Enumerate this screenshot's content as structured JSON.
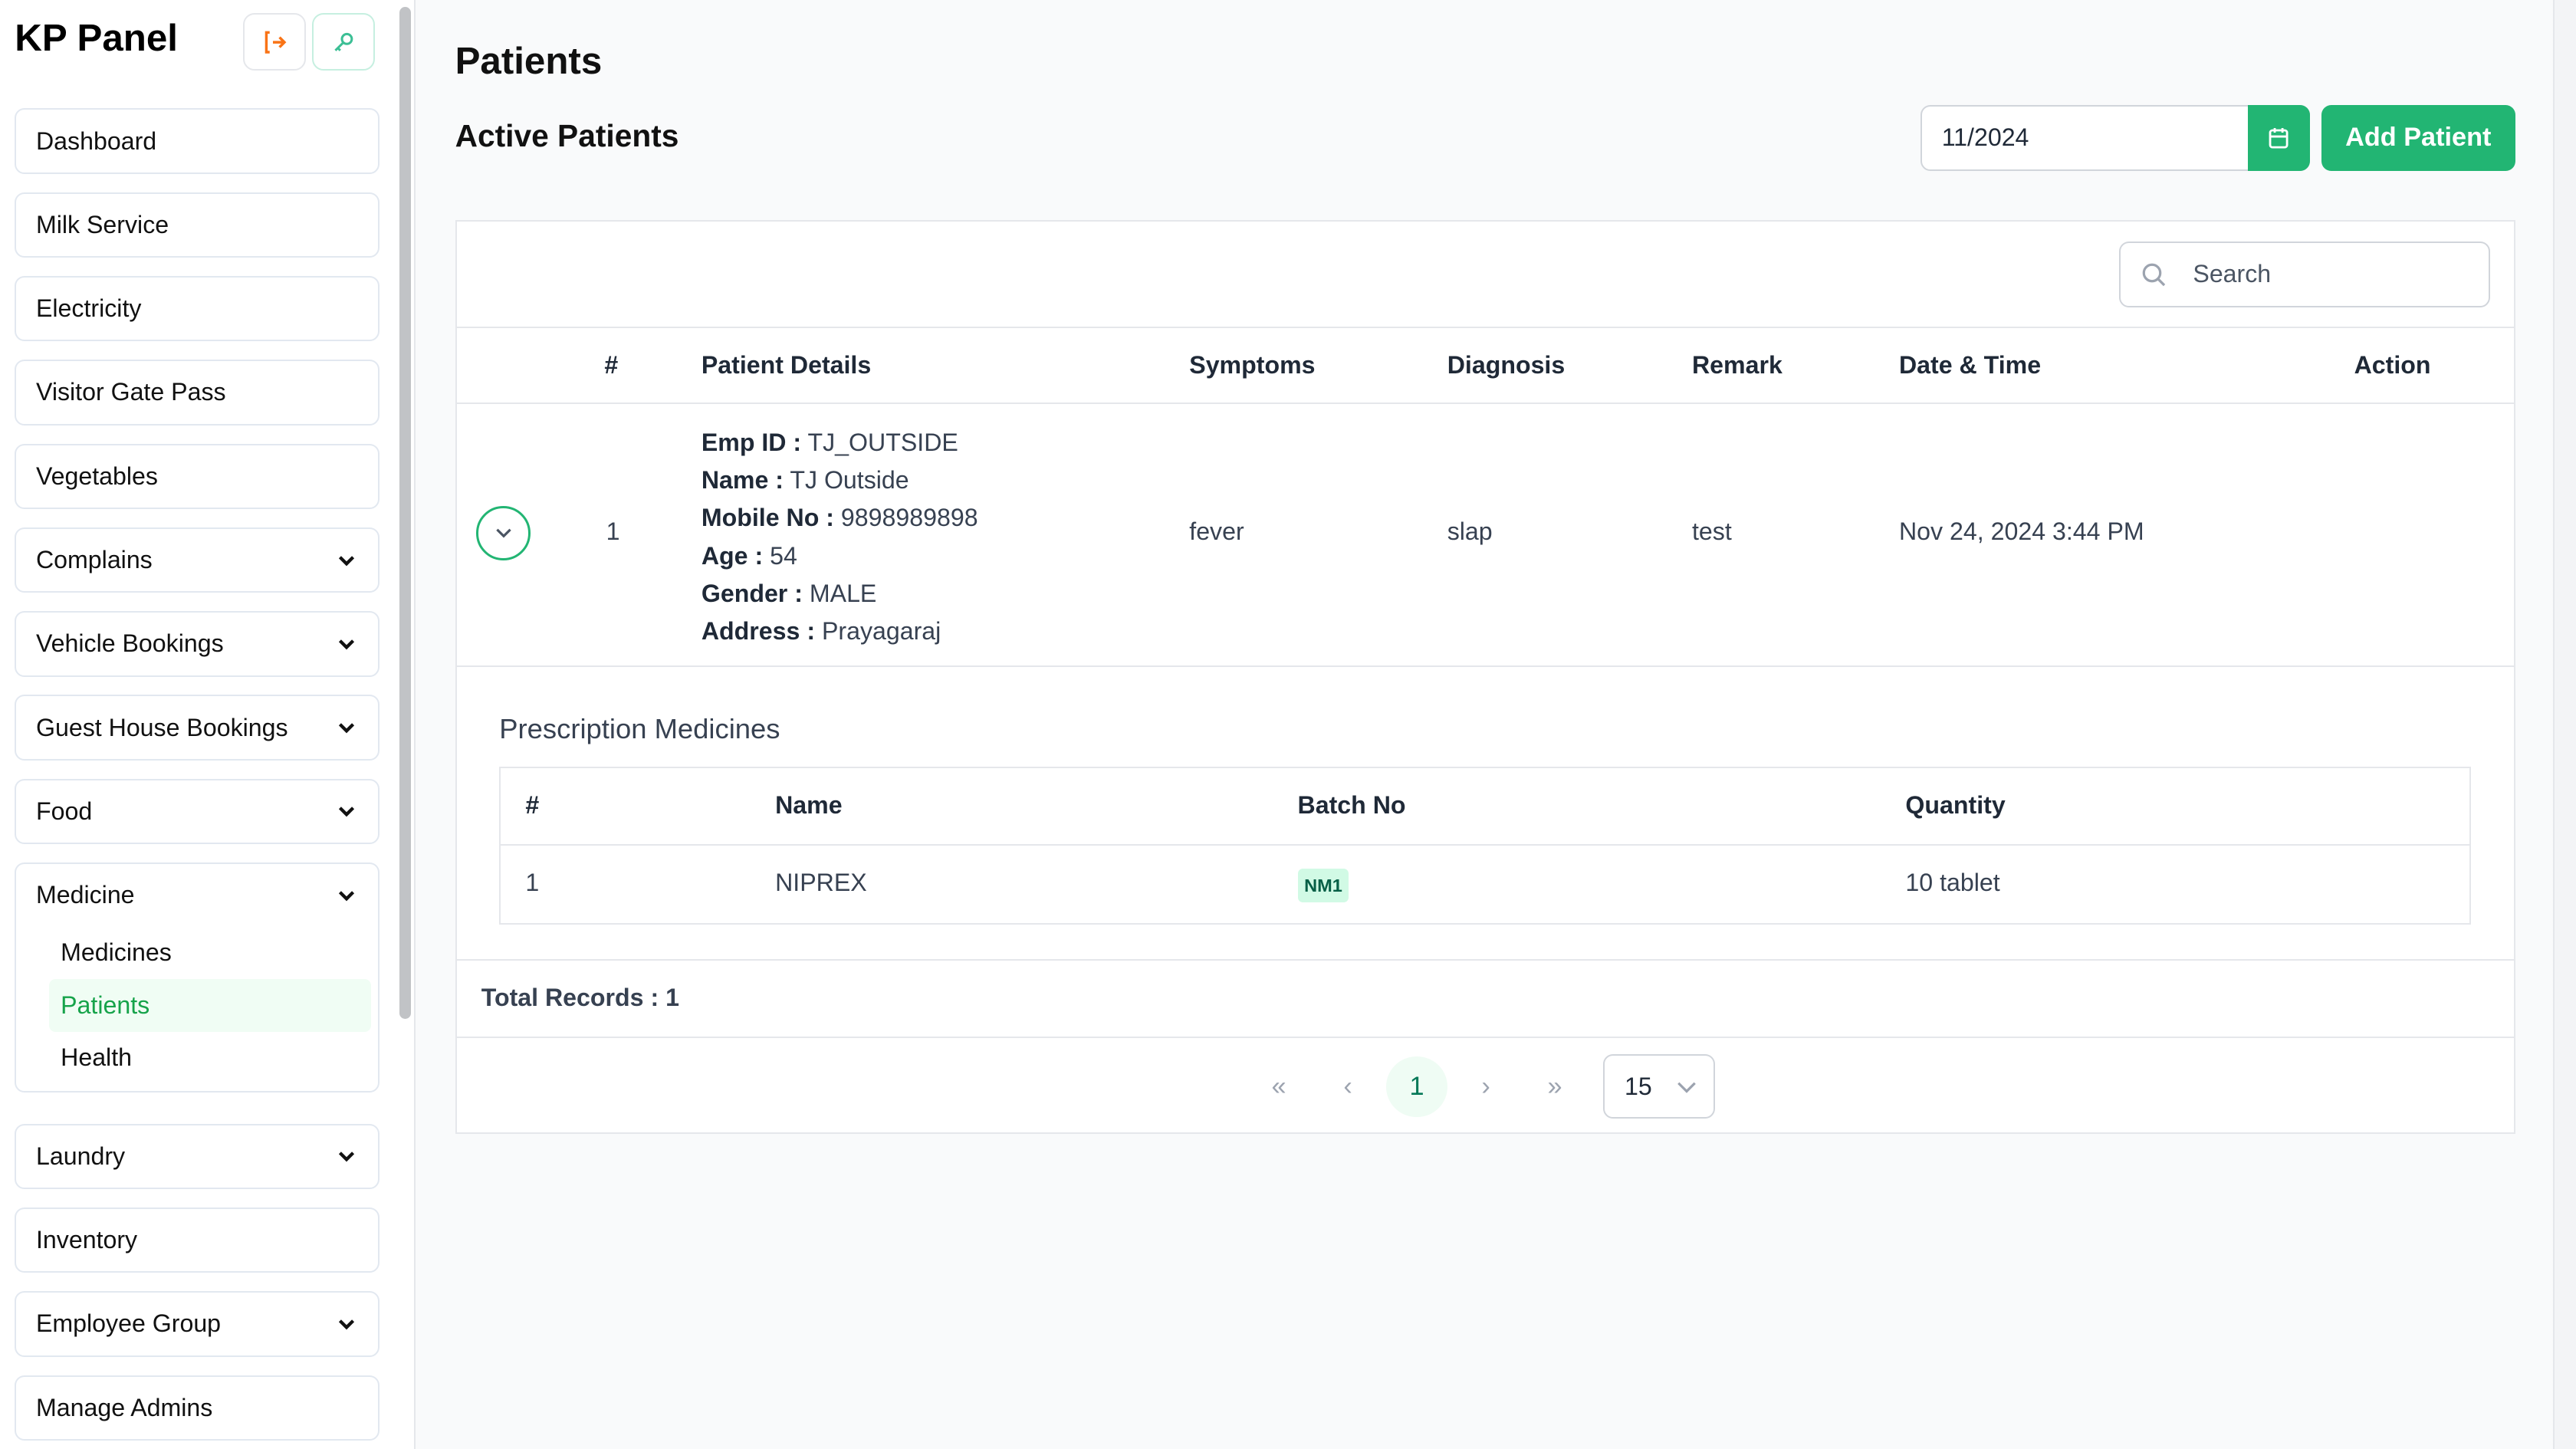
{
  "app": {
    "title": "KP Panel",
    "logout_icon": "logout-icon",
    "key_icon": "key-icon"
  },
  "sidebar": {
    "items": [
      {
        "label": "Dashboard",
        "chevron": false
      },
      {
        "label": "Milk Service",
        "chevron": false
      },
      {
        "label": "Electricity",
        "chevron": false
      },
      {
        "label": "Visitor Gate Pass",
        "chevron": false
      },
      {
        "label": "Vegetables",
        "chevron": false
      },
      {
        "label": "Complains",
        "chevron": true
      },
      {
        "label": "Vehicle Bookings",
        "chevron": true
      },
      {
        "label": "Guest House Bookings",
        "chevron": true
      },
      {
        "label": "Food",
        "chevron": true
      },
      {
        "label": "Medicine",
        "chevron": true,
        "expanded": true,
        "children": [
          {
            "label": "Medicines"
          },
          {
            "label": "Patients",
            "active": true
          },
          {
            "label": "Health"
          }
        ]
      },
      {
        "label": "Laundry",
        "chevron": true
      },
      {
        "label": "Inventory",
        "chevron": false
      },
      {
        "label": "Employee Group",
        "chevron": true
      },
      {
        "label": "Manage Admins",
        "chevron": false
      }
    ]
  },
  "page": {
    "title": "Patients",
    "subtitle": "Active Patients",
    "month_value": "11/2024",
    "add_label": "Add Patient",
    "accent": "#22b573"
  },
  "table": {
    "search_placeholder": "Search",
    "headers": [
      "#",
      "Patient Details",
      "Symptoms",
      "Diagnosis",
      "Remark",
      "Date & Time",
      "Action"
    ],
    "rows": [
      {
        "index": "1",
        "details": [
          {
            "label": "Emp ID :",
            "value": "TJ_OUTSIDE"
          },
          {
            "label": "Name :",
            "value": "TJ Outside"
          },
          {
            "label": "Mobile No :",
            "value": "9898989898"
          },
          {
            "label": "Age :",
            "value": "54"
          },
          {
            "label": "Gender :",
            "value": "MALE"
          },
          {
            "label": "Address :",
            "value": "Prayagaraj"
          }
        ],
        "symptoms": "fever",
        "diagnosis": "slap",
        "remark": "test",
        "datetime": "Nov 24, 2024 3:44 PM"
      }
    ],
    "prescription": {
      "title": "Prescription Medicines",
      "headers": [
        "#",
        "Name",
        "Batch No",
        "Quantity"
      ],
      "rows": [
        {
          "index": "1",
          "name": "NIPREX",
          "batch": "NM1",
          "quantity": "10 tablet"
        }
      ]
    },
    "total": "Total Records : 1"
  },
  "pagination": {
    "first": "«",
    "prev": "‹",
    "current": "1",
    "next": "›",
    "last": "»",
    "per_page": "15"
  }
}
